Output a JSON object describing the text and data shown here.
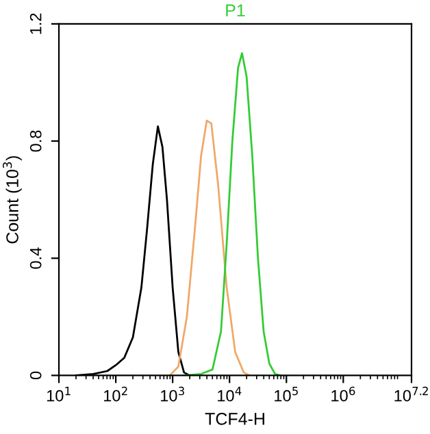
{
  "chart_data": {
    "type": "line",
    "title": "P1",
    "xlabel": "TCF4-H",
    "ylabel": "Count (10$^{3}$)",
    "log": "x",
    "xlim": [
      10,
      15848932
    ],
    "xticks": [
      {
        "value": 10,
        "label": "10$^{1}$"
      },
      {
        "value": 100,
        "label": "10$^{2}$"
      },
      {
        "value": 1000,
        "label": "10$^{3}$"
      },
      {
        "value": 10000,
        "label": "10$^{4}$"
      },
      {
        "value": 100000,
        "label": "10$^{5}$"
      },
      {
        "value": 1000000,
        "label": "10$^{6}$"
      },
      {
        "value": 15848932,
        "label": "10$^{7.2}$"
      }
    ],
    "ylim": [
      0,
      1.2
    ],
    "yticks": [
      0,
      0.4,
      0.8,
      1.2
    ],
    "grid": false,
    "legend": false,
    "marker": "none",
    "line_style": "solid",
    "series": [
      {
        "color": "#000000",
        "x": [
          20,
          40,
          71,
          100,
          141,
          200,
          282,
          355,
          447,
          550,
          661,
          794,
          1000,
          1259,
          1585,
          1995
        ],
        "values": [
          0,
          0.005,
          0.015,
          0.035,
          0.06,
          0.13,
          0.3,
          0.5,
          0.72,
          0.85,
          0.78,
          0.6,
          0.3,
          0.08,
          0.01,
          0
        ]
      },
      {
        "color": "#f0a868",
        "x": [
          891,
          1259,
          1778,
          2512,
          3162,
          3981,
          4786,
          6310,
          8913,
          12589,
          17783,
          22387
        ],
        "values": [
          0,
          0.03,
          0.2,
          0.52,
          0.75,
          0.87,
          0.86,
          0.65,
          0.3,
          0.08,
          0.01,
          0
        ]
      },
      {
        "color": "#33cc33",
        "x": [
          1585,
          3162,
          5012,
          7079,
          8913,
          11220,
          14125,
          16596,
          19953,
          25119,
          31623,
          39811,
          50119,
          63096,
          79433
        ],
        "values": [
          0,
          0.005,
          0.02,
          0.15,
          0.45,
          0.8,
          1.05,
          1.1,
          1.02,
          0.75,
          0.4,
          0.15,
          0.04,
          0.005,
          0
        ]
      }
    ]
  }
}
